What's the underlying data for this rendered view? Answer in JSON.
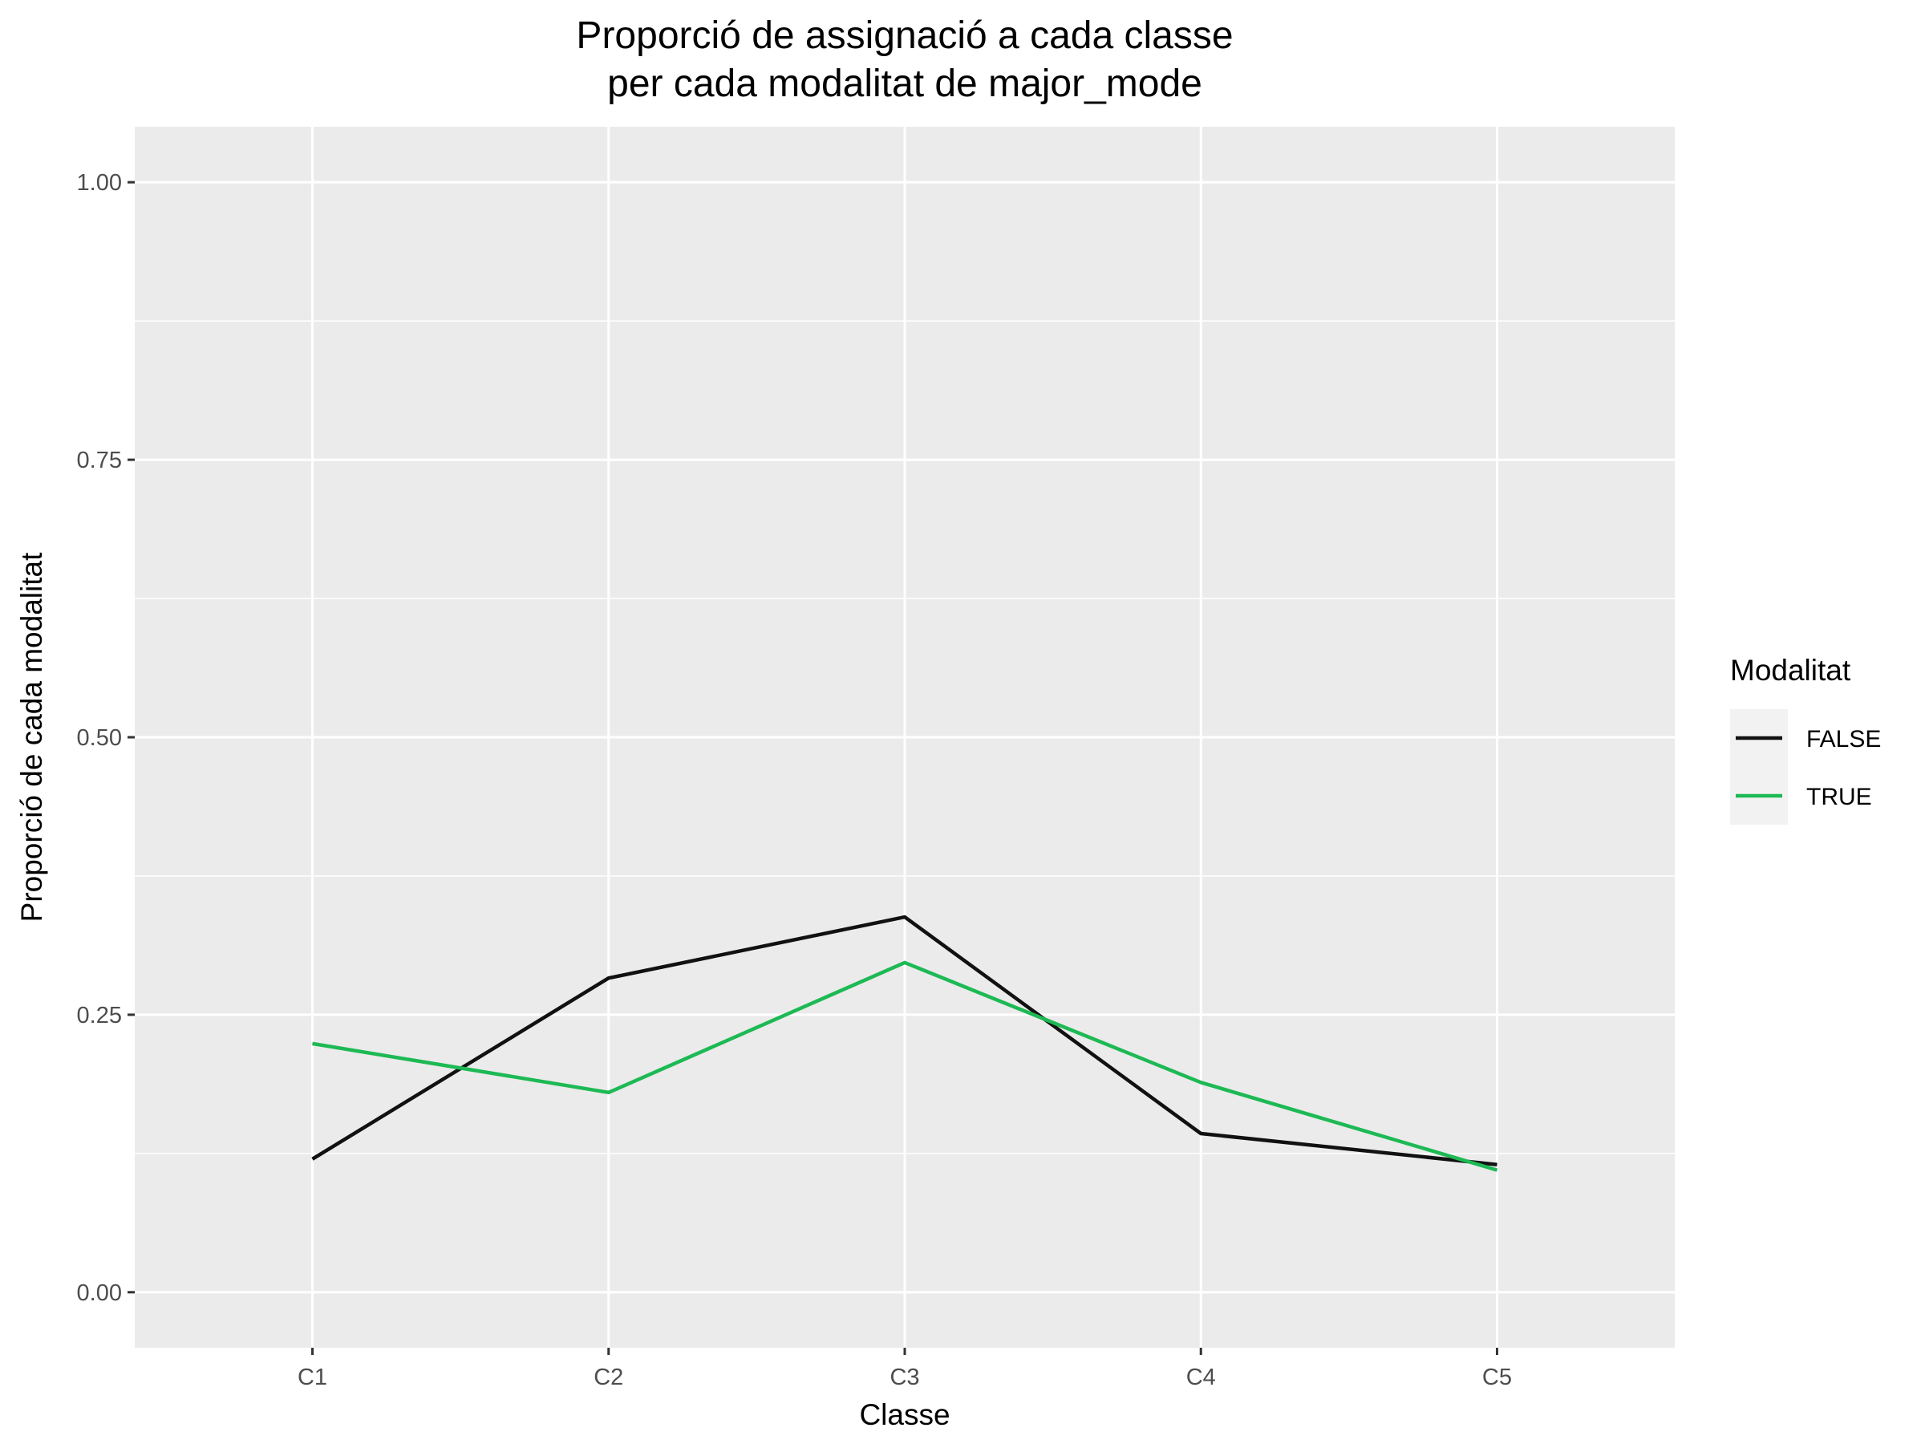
{
  "chart_data": {
    "type": "line",
    "title": "Proporció de assignació a cada classe",
    "subtitle": "per cada modalitat de major_mode",
    "xlabel": "Classe",
    "ylabel": "Proporció de cada modalitat",
    "categories": [
      "C1",
      "C2",
      "C3",
      "C4",
      "C5"
    ],
    "ylim": [
      -0.05,
      1.05
    ],
    "yticks": [
      0.0,
      0.25,
      0.5,
      0.75,
      1.0
    ],
    "ytick_labels": [
      "0.00",
      "0.25",
      "0.50",
      "0.75",
      "1.00"
    ],
    "grid": true,
    "legend": {
      "title": "Modalitat",
      "position": "right"
    },
    "series": [
      {
        "name": "FALSE",
        "color": "#111111",
        "values": [
          0.12,
          0.283,
          0.338,
          0.143,
          0.115
        ]
      },
      {
        "name": "TRUE",
        "color": "#1db954",
        "values": [
          0.224,
          0.18,
          0.297,
          0.189,
          0.11
        ]
      }
    ],
    "panel_background": "#ebebeb",
    "grid_color": "#ffffff"
  }
}
